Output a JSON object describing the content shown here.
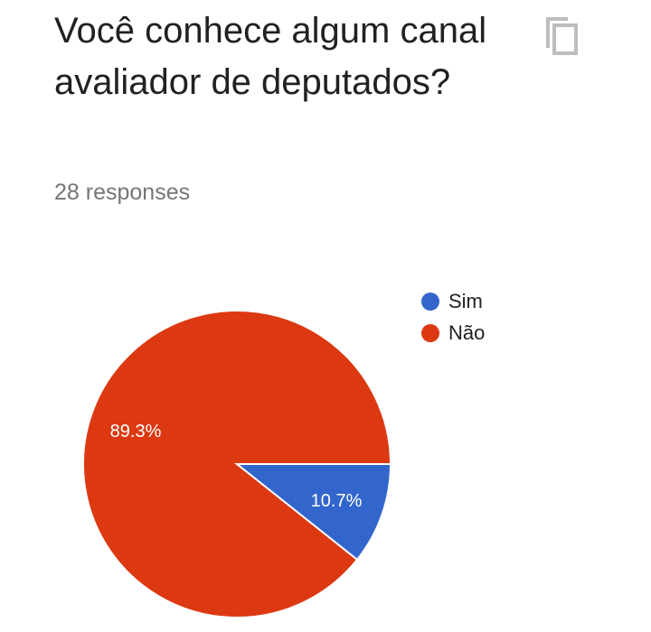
{
  "question": {
    "title": "Você conhece algum canal avaliador de deputados?",
    "responses": "28 responses"
  },
  "icons": {
    "copy": "copy-icon"
  },
  "colors": {
    "sim": "#3366cc",
    "nao": "#dc3912",
    "title": "#212121",
    "subtitle": "#757575",
    "icon": "#bdbdbd"
  },
  "chart_data": {
    "type": "pie",
    "categories": [
      "Sim",
      "Não"
    ],
    "values": [
      10.7,
      89.3
    ],
    "labels": [
      "10.7%",
      "89.3%"
    ],
    "legend": [
      "Sim",
      "Não"
    ],
    "legend_position": "right",
    "counts": [
      3,
      25
    ],
    "total": 28
  }
}
